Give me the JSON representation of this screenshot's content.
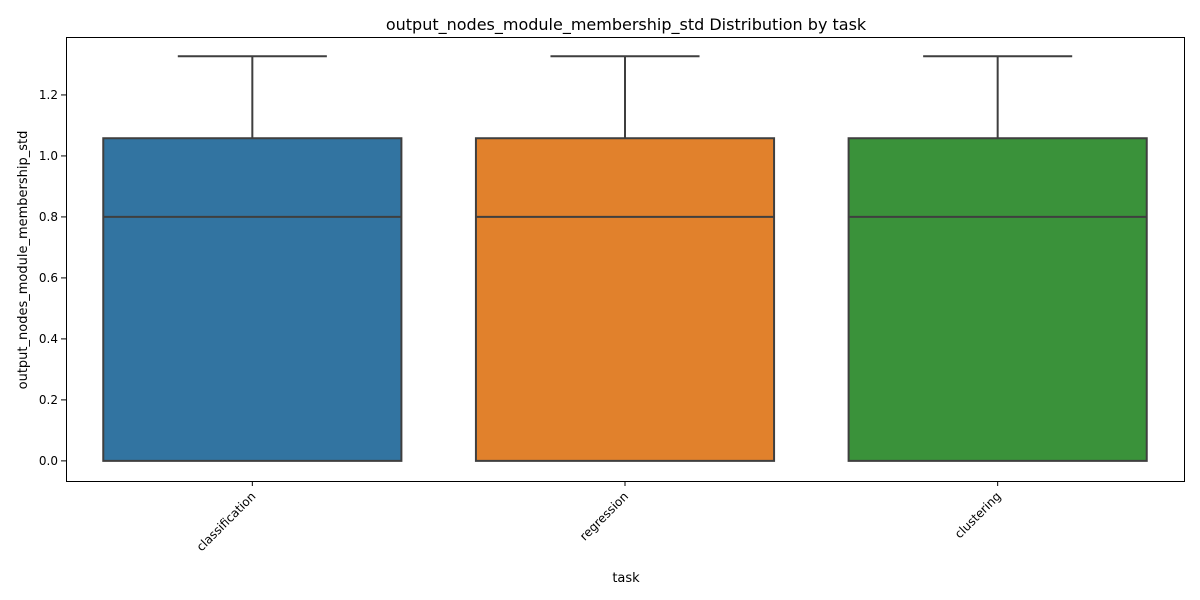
{
  "chart_data": {
    "type": "box",
    "title": "output_nodes_module_membership_std Distribution by task",
    "xlabel": "task",
    "ylabel": "output_nodes_module_membership_std",
    "ylim": [
      -0.066,
      1.39
    ],
    "yticks": [
      0.0,
      0.2,
      0.4,
      0.6,
      0.8,
      1.0,
      1.2
    ],
    "ytick_labels": [
      "0.0",
      "0.2",
      "0.4",
      "0.6",
      "0.8",
      "1.0",
      "1.2"
    ],
    "categories": [
      "classification",
      "regression",
      "clustering"
    ],
    "boxes": [
      {
        "category": "classification",
        "min": 0.0,
        "q1": 0.0,
        "median": 0.8,
        "q3": 1.058,
        "max": 1.327,
        "color": "#3274a1"
      },
      {
        "category": "regression",
        "min": 0.0,
        "q1": 0.0,
        "median": 0.8,
        "q3": 1.058,
        "max": 1.327,
        "color": "#e1812c"
      },
      {
        "category": "clustering",
        "min": 0.0,
        "q1": 0.0,
        "median": 0.8,
        "q3": 1.058,
        "max": 1.327,
        "color": "#3a923a"
      }
    ],
    "grid": false,
    "legend": "none"
  }
}
